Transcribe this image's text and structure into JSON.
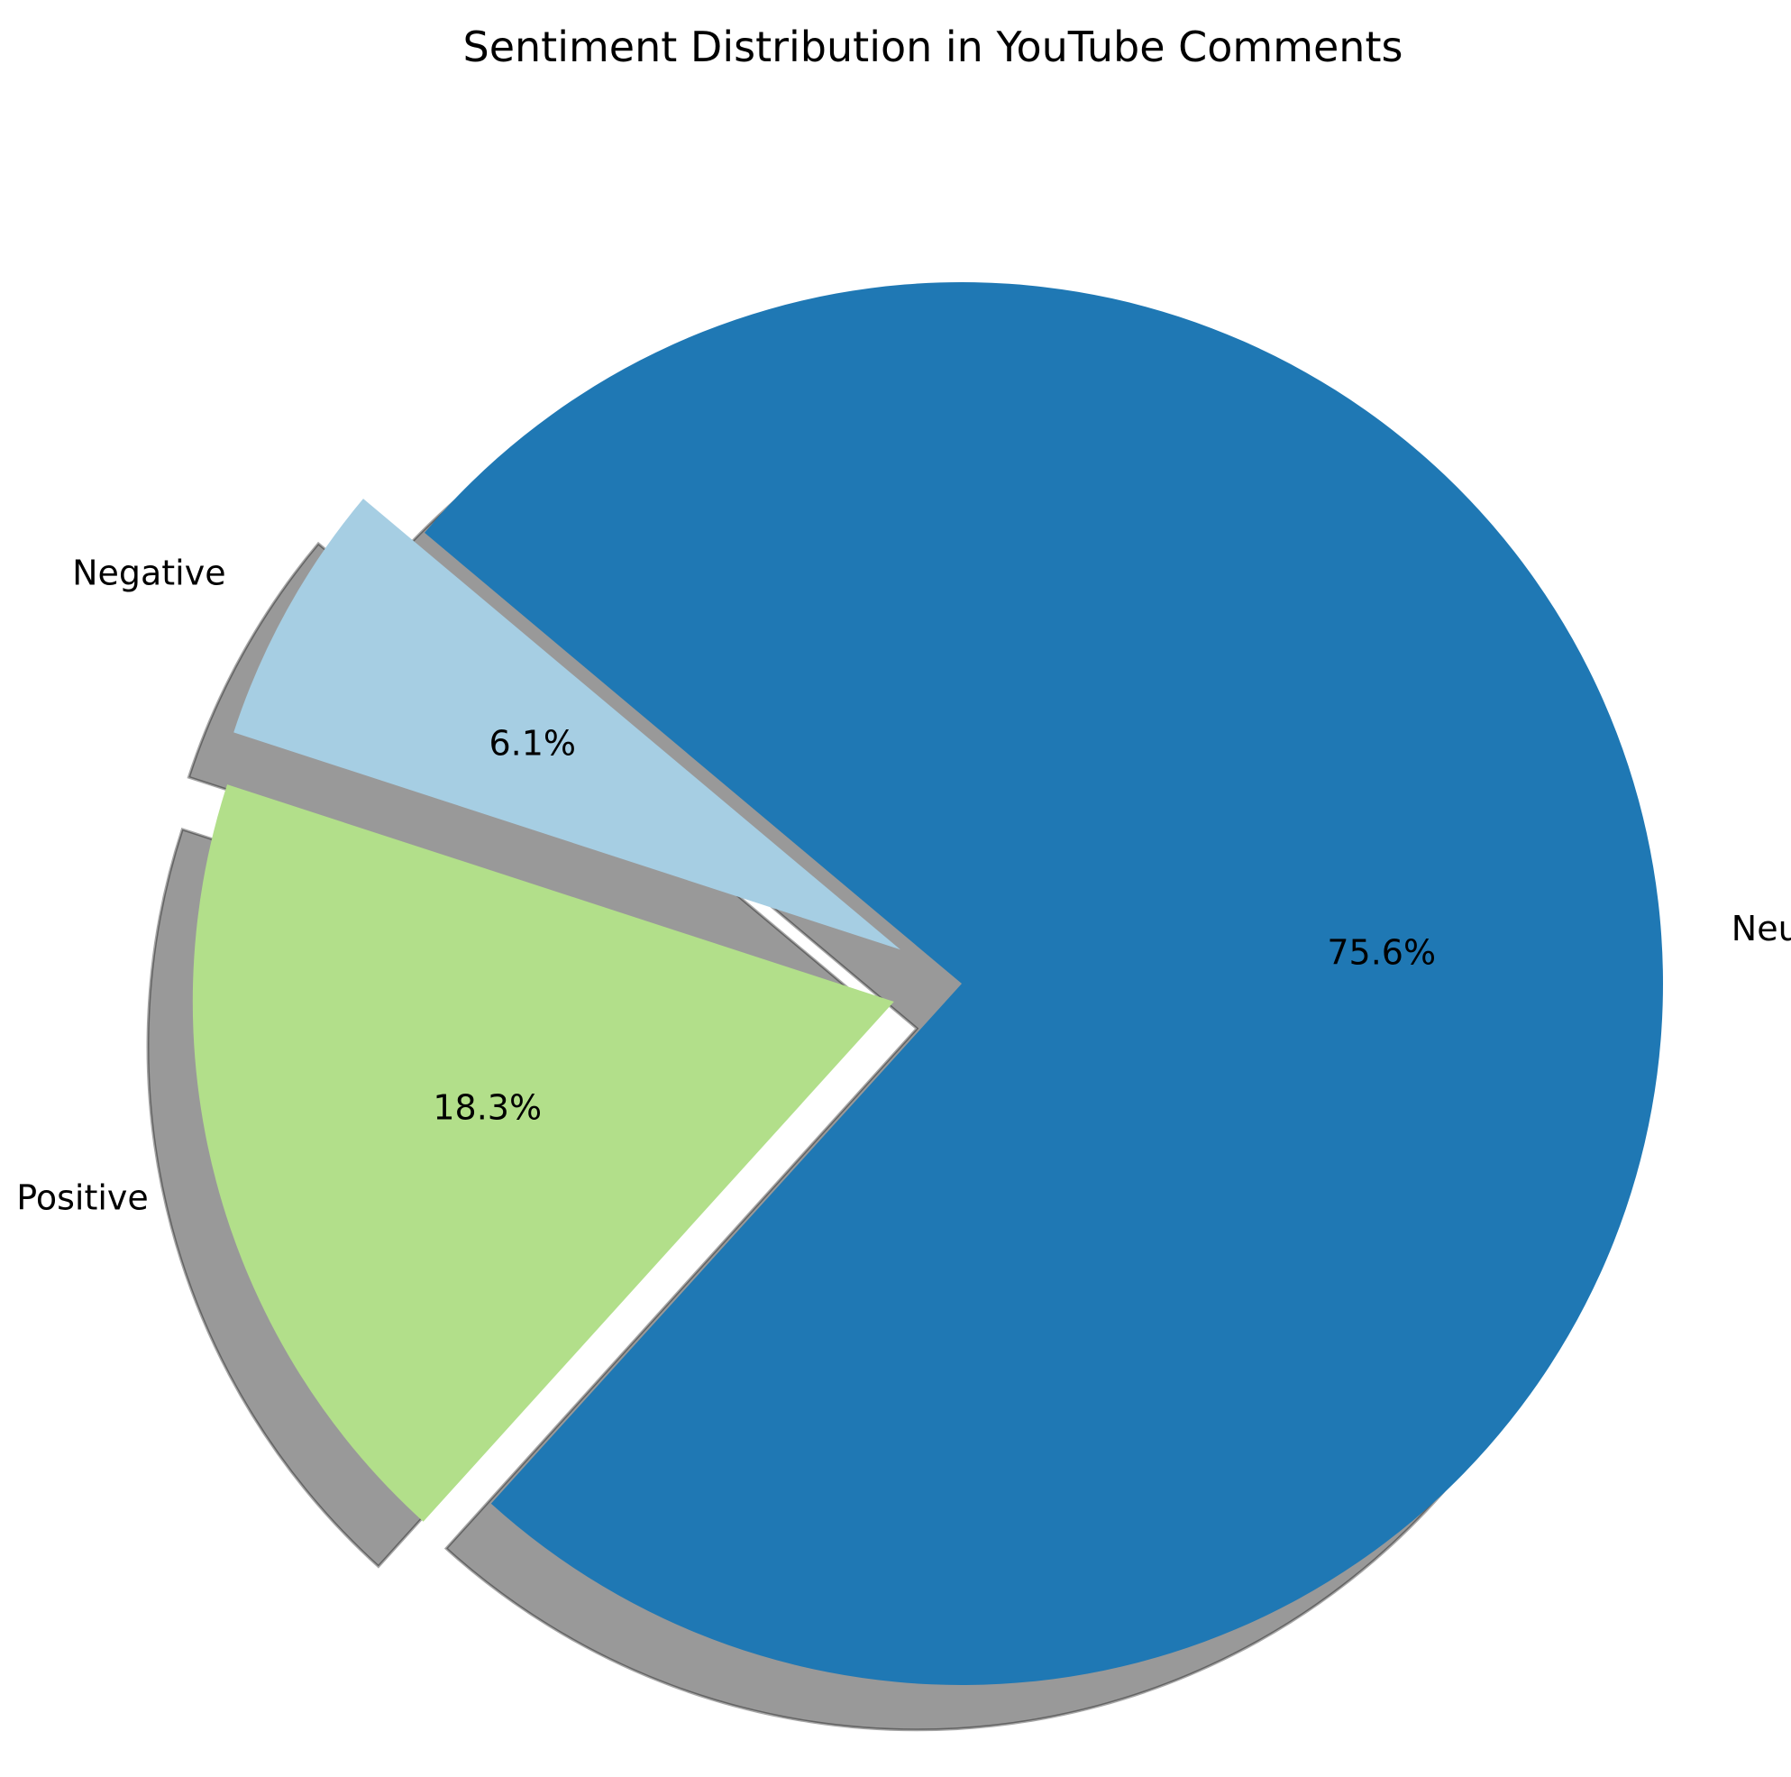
{
  "chart_data": {
    "type": "pie",
    "title": "Sentiment Distribution in YouTube Comments",
    "categories": [
      "Negative",
      "Positive",
      "Neutral"
    ],
    "values": [
      6.1,
      18.3,
      75.6
    ],
    "value_labels": [
      "6.1%",
      "18.3%",
      "75.6%"
    ],
    "colors": [
      "#a6cee3",
      "#b2df8a",
      "#1f78b4"
    ],
    "exploded": [
      true,
      true,
      false
    ],
    "shadow": true,
    "start_angle_deg": 140,
    "direction": "counterclockwise"
  }
}
